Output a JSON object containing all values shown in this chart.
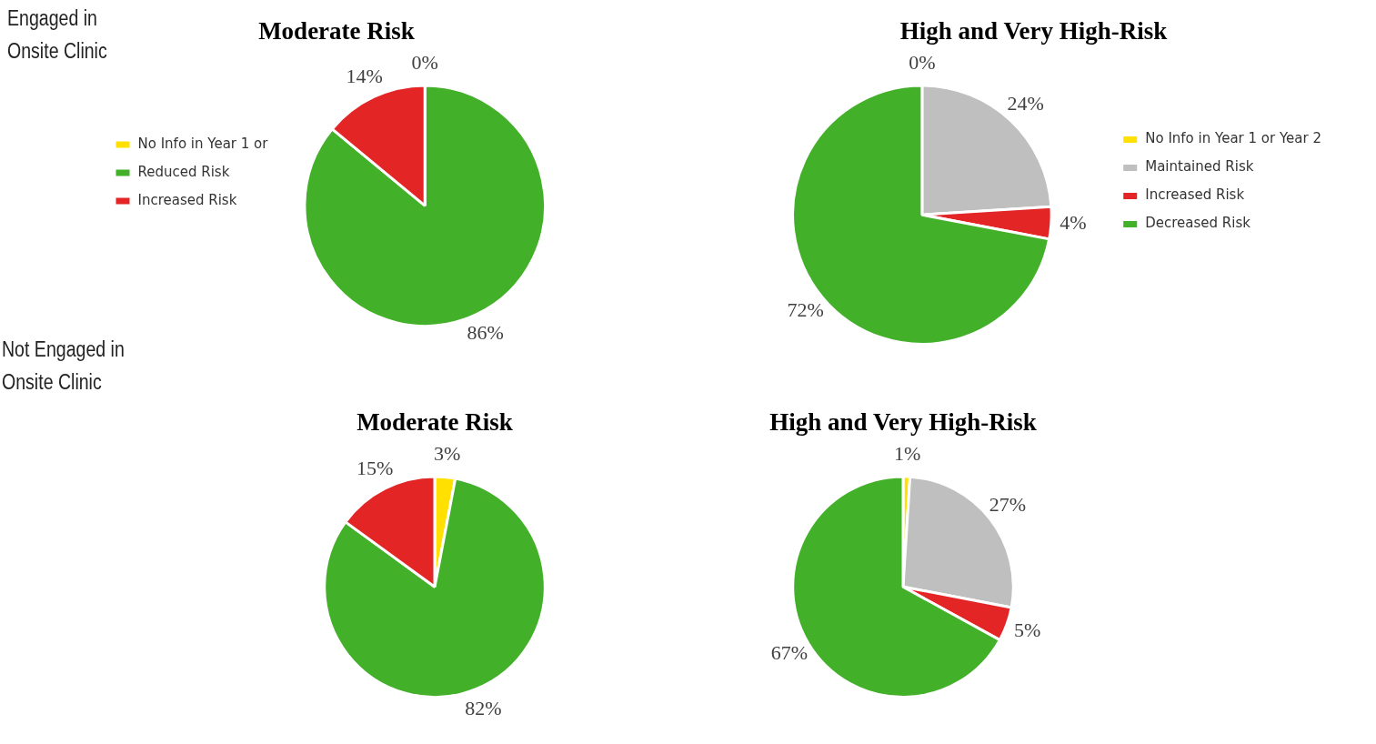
{
  "chart_data": [
    {
      "type": "pie",
      "title": "Moderate Risk",
      "categories": [
        "No Info in Year 1 or",
        "Reduced Risk",
        "Increased Risk"
      ],
      "values": [
        0,
        86,
        14
      ],
      "colors": [
        "#ffe000",
        "#43b02a",
        "#e32526"
      ],
      "value_labels": [
        "0%",
        "86%",
        "14%"
      ],
      "legend": "left",
      "annotations": [
        "Engaged in Onsite Clinic"
      ]
    },
    {
      "type": "pie",
      "title": "High and Very High-Risk",
      "categories": [
        "No Info in Year 1 or Year 2",
        "Maintained Risk",
        "Increased Risk",
        "Decreased Risk"
      ],
      "values": [
        0,
        24,
        4,
        72
      ],
      "colors": [
        "#ffe000",
        "#bfbfbf",
        "#e32526",
        "#43b02a"
      ],
      "value_labels": [
        "0%",
        "24%",
        "4%",
        "72%"
      ],
      "legend": "right"
    },
    {
      "type": "pie",
      "title": "Moderate Risk",
      "categories": [
        null,
        null,
        null
      ],
      "values": [
        3,
        82,
        15
      ],
      "colors": [
        "#ffe000",
        "#43b02a",
        "#e32526"
      ],
      "value_labels": [
        "3%",
        "82%",
        "15%"
      ],
      "annotations": [
        "Not Engaged in Onsite Clinic"
      ]
    },
    {
      "type": "pie",
      "title": "High and Very High-Risk",
      "categories": [
        null,
        null,
        null,
        null
      ],
      "values": [
        1,
        27,
        5,
        67
      ],
      "colors": [
        "#ffe000",
        "#bfbfbf",
        "#e32526",
        "#43b02a"
      ],
      "value_labels": [
        "1%",
        "27%",
        "5%",
        "67%"
      ]
    }
  ]
}
